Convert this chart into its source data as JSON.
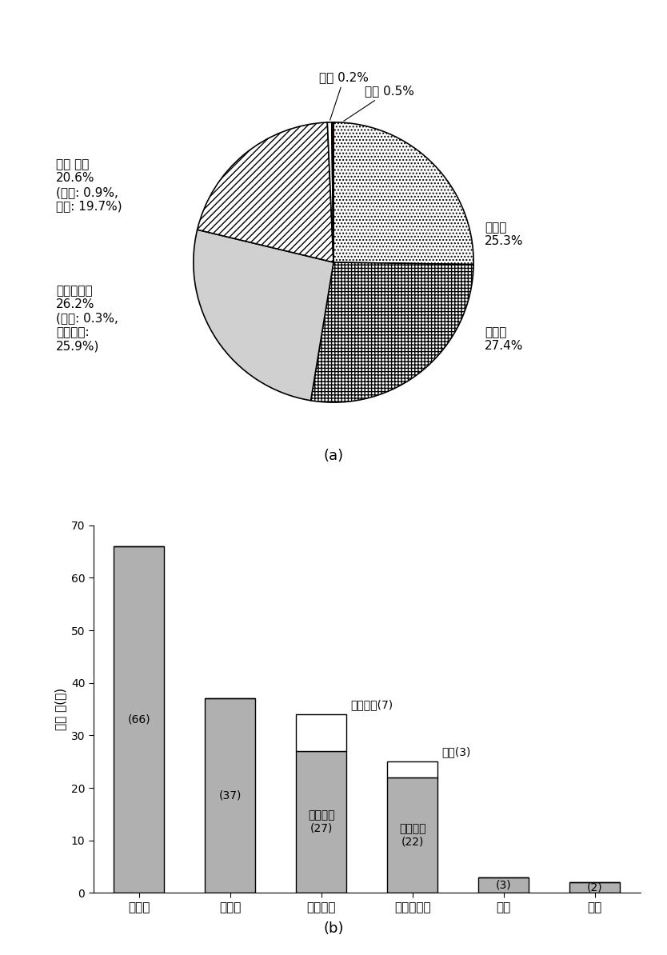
{
  "pie": {
    "values": [
      25.3,
      27.4,
      26.2,
      20.6,
      0.5,
      0.2
    ],
    "hatches": [
      "....",
      "++++",
      "",
      "////",
      "",
      ""
    ],
    "face_colors": [
      "white",
      "white",
      "#d0d0d0",
      "white",
      "white",
      "#8b0000"
    ],
    "startangle": 90
  },
  "bar": {
    "categories": [
      "지하수",
      "지표수",
      "용수수송",
      "해수담수화",
      "빗물",
      "기타"
    ],
    "bottom_values": [
      66,
      37,
      27,
      22,
      3,
      2
    ],
    "top_values": [
      0,
      0,
      7,
      3,
      0,
      0
    ],
    "bottom_labels": [
      "(66)",
      "(37)",
      "관로수송\n(27)",
      "염지하수\n(22)",
      "(3)",
      "(2)"
    ],
    "top_labels": [
      "",
      "",
      "선박수송(7)",
      "해수(3)",
      "",
      ""
    ],
    "ylabel": "도서 수(개)",
    "ylim": [
      0,
      70
    ],
    "yticks": [
      0,
      10,
      20,
      30,
      40,
      50,
      60,
      70
    ],
    "bar_color": "#b0b0b0"
  },
  "label_a": "(a)",
  "label_b": "(b)",
  "bg_color": "#ffffff"
}
